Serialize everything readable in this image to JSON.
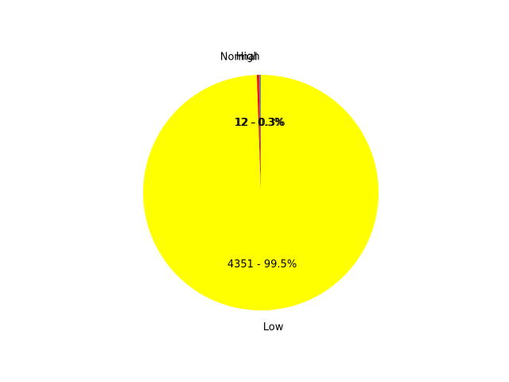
{
  "chart_data": {
    "type": "pie",
    "start_angle_deg": 90,
    "direction": "counterclockwise",
    "slices": [
      {
        "label": "High",
        "value": 12,
        "percent_label": "12 - 0.3%",
        "color": "#808080"
      },
      {
        "label": "Normal",
        "value": 12,
        "percent_label": "12 - 0.3%",
        "color": "#ff0000"
      },
      {
        "label": "Low",
        "value": 4351,
        "percent_label": "4351 - 99.5%",
        "color": "#ffff00"
      }
    ],
    "legend": "none",
    "grid": false
  }
}
